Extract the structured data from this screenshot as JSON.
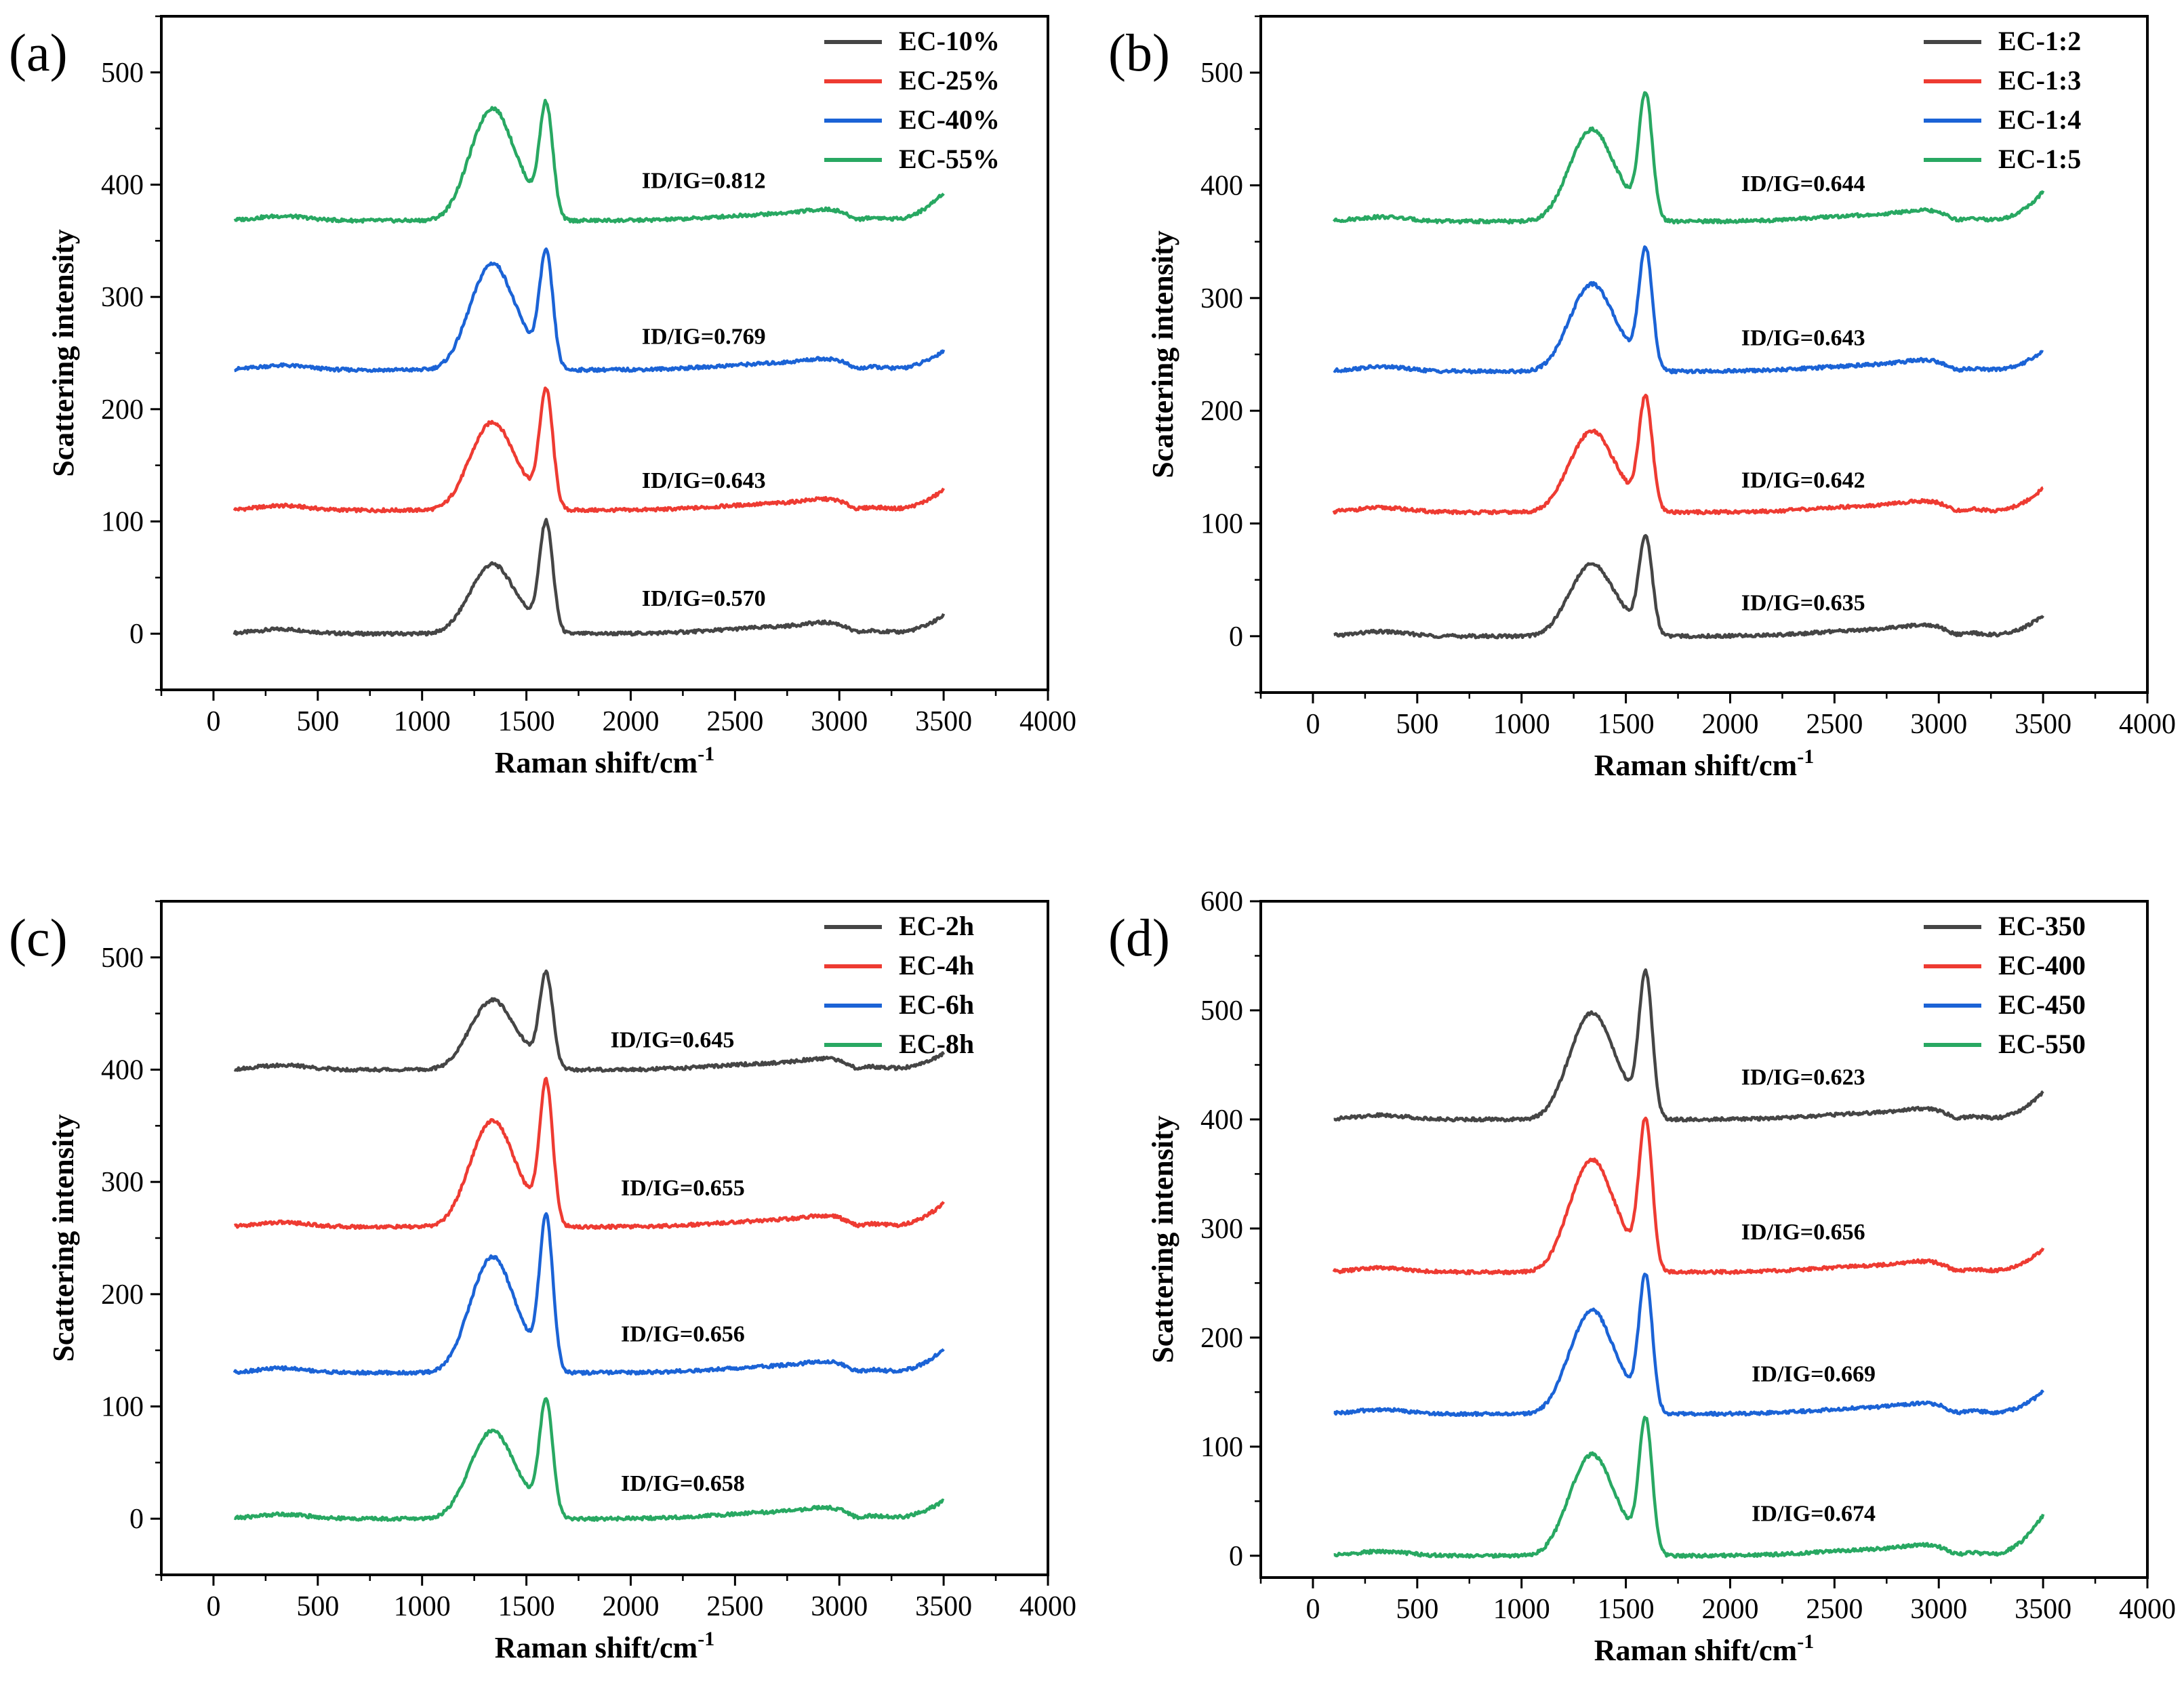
{
  "chart_data": [
    {
      "panel": "(a)",
      "type": "line",
      "xlabel": "Raman shift/cm",
      "xlabel_sup": "-1",
      "ylabel": "Scattering intensity",
      "xlim": [
        -250,
        4000
      ],
      "ylim": [
        -50,
        550
      ],
      "xticks": [
        0,
        500,
        1000,
        1500,
        2000,
        2500,
        3000,
        3500,
        4000
      ],
      "yticks": [
        0,
        100,
        200,
        300,
        400,
        500
      ],
      "legend_position": "top-right",
      "grid": false,
      "series": [
        {
          "name": "EC-10%",
          "color": "#454545",
          "offset": 0,
          "d_height": 60,
          "g_height": 108,
          "tail": 16,
          "ratio_label": "ID/IG=0.570",
          "label_x": 2350,
          "label_y": 25
        },
        {
          "name": "EC-25%",
          "color": "#ee3b32",
          "offset": 110,
          "d_height": 76,
          "g_height": 118,
          "tail": 18,
          "ratio_label": "ID/IG=0.643",
          "label_x": 2350,
          "label_y": 130
        },
        {
          "name": "EC-40%",
          "color": "#1b63d6",
          "offset": 235,
          "d_height": 92,
          "g_height": 118,
          "tail": 17,
          "ratio_label": "ID/IG=0.769",
          "label_x": 2350,
          "label_y": 258
        },
        {
          "name": "EC-55%",
          "color": "#28a862",
          "offset": 368,
          "d_height": 97,
          "g_height": 118,
          "tail": 25,
          "ratio_label": "ID/IG=0.812",
          "label_x": 2350,
          "label_y": 397
        }
      ]
    },
    {
      "panel": "(b)",
      "type": "line",
      "xlabel": "Raman shift/cm",
      "xlabel_sup": "-1",
      "ylabel": "Scattering intensity",
      "xlim": [
        -250,
        4000
      ],
      "ylim": [
        -50,
        550
      ],
      "xticks": [
        0,
        500,
        1000,
        1500,
        2000,
        2500,
        3000,
        3500,
        4000
      ],
      "yticks": [
        0,
        100,
        200,
        300,
        400,
        500
      ],
      "legend_position": "top-right",
      "grid": false,
      "series": [
        {
          "name": "EC-1:2",
          "color": "#454545",
          "offset": 0,
          "d_height": 62,
          "g_height": 97,
          "tail": 18,
          "ratio_label": "ID/IG=0.635",
          "label_x": 2350,
          "label_y": 23
        },
        {
          "name": "EC-1:3",
          "color": "#ee3b32",
          "offset": 110,
          "d_height": 70,
          "g_height": 112,
          "tail": 21,
          "ratio_label": "ID/IG=0.642",
          "label_x": 2350,
          "label_y": 132
        },
        {
          "name": "EC-1:4",
          "color": "#1b63d6",
          "offset": 235,
          "d_height": 75,
          "g_height": 120,
          "tail": 18,
          "ratio_label": "ID/IG=0.643",
          "label_x": 2350,
          "label_y": 258
        },
        {
          "name": "EC-1:5",
          "color": "#28a862",
          "offset": 368,
          "d_height": 79,
          "g_height": 125,
          "tail": 26,
          "ratio_label": "ID/IG=0.644",
          "label_x": 2350,
          "label_y": 395
        }
      ]
    },
    {
      "panel": "(c)",
      "type": "line",
      "xlabel": "Raman shift/cm",
      "xlabel_sup": "-1",
      "ylabel": "Scattering intensity",
      "xlim": [
        -250,
        4000
      ],
      "ylim": [
        -50,
        550
      ],
      "xticks": [
        0,
        500,
        1000,
        1500,
        2000,
        2500,
        3000,
        3500,
        4000
      ],
      "yticks": [
        0,
        100,
        200,
        300,
        400,
        500
      ],
      "legend_position": "top-right",
      "grid": false,
      "series": [
        {
          "name": "EC-2h",
          "color": "#454545",
          "offset": 400,
          "d_height": 60,
          "g_height": 94,
          "tail": 14,
          "ratio_label": "ID/IG=0.645",
          "label_x": 2200,
          "label_y": 420
        },
        {
          "name": "EC-4h",
          "color": "#ee3b32",
          "offset": 260,
          "d_height": 92,
          "g_height": 142,
          "tail": 21,
          "ratio_label": "ID/IG=0.655",
          "label_x": 2250,
          "label_y": 288
        },
        {
          "name": "EC-6h",
          "color": "#1b63d6",
          "offset": 130,
          "d_height": 100,
          "g_height": 153,
          "tail": 21,
          "ratio_label": "ID/IG=0.656",
          "label_x": 2250,
          "label_y": 158
        },
        {
          "name": "EC-8h",
          "color": "#28a862",
          "offset": 0,
          "d_height": 76,
          "g_height": 117,
          "tail": 16,
          "ratio_label": "ID/IG=0.658",
          "label_x": 2250,
          "label_y": 25
        }
      ]
    },
    {
      "panel": "(d)",
      "type": "line",
      "xlabel": "Raman shift/cm",
      "xlabel_sup": "-1",
      "ylabel": "Scattering intensity",
      "xlim": [
        -250,
        4000
      ],
      "ylim": [
        -20,
        600
      ],
      "xticks": [
        0,
        500,
        1000,
        1500,
        2000,
        2500,
        3000,
        3500,
        4000
      ],
      "yticks": [
        0,
        100,
        200,
        300,
        400,
        500,
        600
      ],
      "legend_position": "top-right",
      "grid": false,
      "series": [
        {
          "name": "EC-350",
          "color": "#454545",
          "offset": 400,
          "d_height": 95,
          "g_height": 148,
          "tail": 25,
          "ratio_label": "ID/IG=0.623",
          "label_x": 2350,
          "label_y": 432
        },
        {
          "name": "EC-400",
          "color": "#ee3b32",
          "offset": 260,
          "d_height": 100,
          "g_height": 154,
          "tail": 21,
          "ratio_label": "ID/IG=0.656",
          "label_x": 2350,
          "label_y": 290
        },
        {
          "name": "EC-450",
          "color": "#1b63d6",
          "offset": 130,
          "d_height": 92,
          "g_height": 140,
          "tail": 20,
          "ratio_label": "ID/IG=0.669",
          "label_x": 2400,
          "label_y": 160
        },
        {
          "name": "EC-550",
          "color": "#28a862",
          "offset": 0,
          "d_height": 90,
          "g_height": 138,
          "tail": 37,
          "ratio_label": "ID/IG=0.674",
          "label_x": 2400,
          "label_y": 32
        }
      ]
    }
  ]
}
